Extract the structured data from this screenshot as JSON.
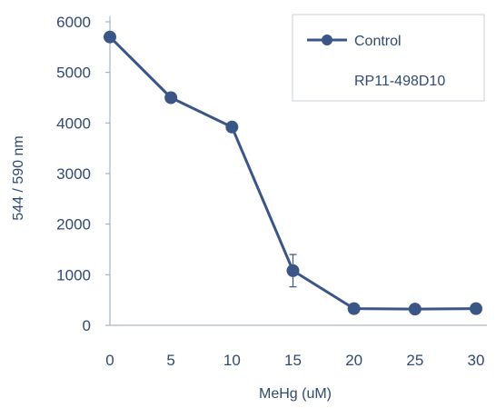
{
  "chart_data": {
    "type": "line",
    "xlabel": "MeHg (uM)",
    "ylabel": "544 / 590 nm",
    "xlim": [
      0,
      30
    ],
    "ylim": [
      0,
      6000
    ],
    "x_ticks": [
      0,
      5,
      10,
      15,
      20,
      25,
      30
    ],
    "y_ticks": [
      0,
      1000,
      2000,
      3000,
      4000,
      5000,
      6000
    ],
    "grid": false,
    "legend_position": "top-right",
    "series": [
      {
        "name": "Control",
        "color": "#3a5686",
        "marker": "circle",
        "x": [
          0,
          5,
          10,
          15,
          20,
          25,
          30
        ],
        "y": [
          5700,
          4500,
          3920,
          1080,
          330,
          320,
          330
        ],
        "error": [
          0,
          0,
          0,
          320,
          0,
          0,
          0
        ]
      },
      {
        "name": "RP11-498D10",
        "color": "#3a5686",
        "marker": "none",
        "x": [],
        "y": [],
        "error": []
      }
    ]
  }
}
